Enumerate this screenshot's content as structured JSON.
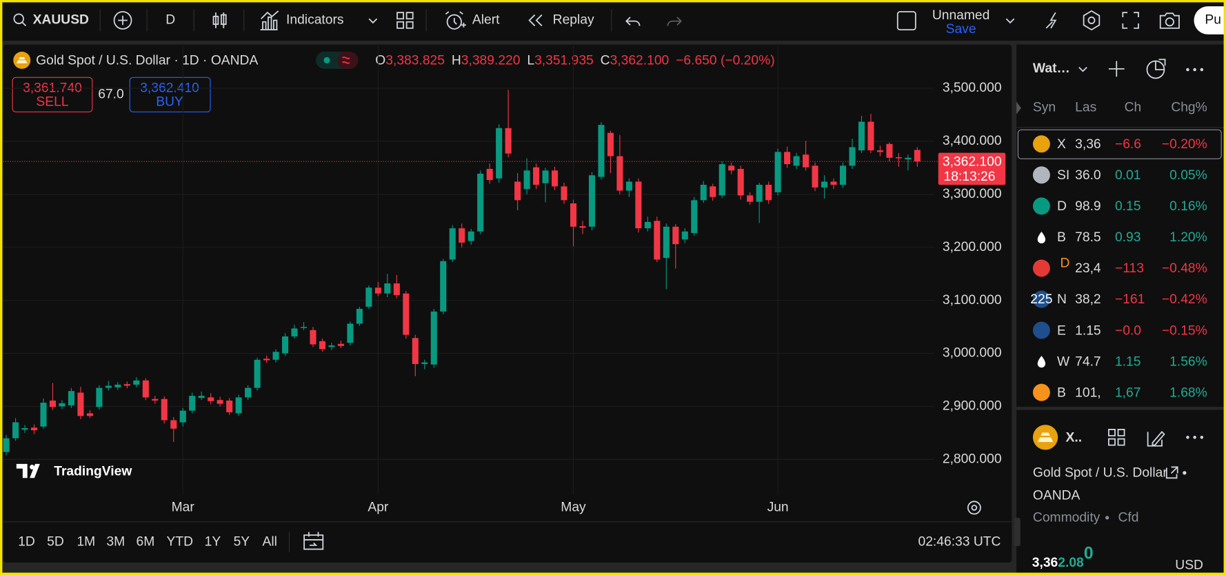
{
  "toolbar": {
    "symbol": "XAUUSD",
    "interval": "D",
    "indicators": "Indicators",
    "alert": "Alert",
    "replay": "Replay",
    "layout_name": "Unnamed",
    "save": "Save",
    "publish": "Pu"
  },
  "legend": {
    "title": "Gold Spot / U.S. Dollar · 1D · OANDA",
    "open_label": "O",
    "open": "3,383.825",
    "high_label": "H",
    "high": "3,389.220",
    "low_label": "L",
    "low": "3,351.935",
    "close_label": "C",
    "close": "3,362.100",
    "change": "−6.650 (−0.20%)"
  },
  "trade": {
    "sell_price": "3,361.740",
    "sell": "SELL",
    "spread": "67.0",
    "buy_price": "3,362.410",
    "buy": "BUY"
  },
  "watermark": "TradingView",
  "chart_data": {
    "type": "candlestick",
    "categories": [
      null,
      null,
      null,
      null,
      null,
      null,
      null,
      null,
      null,
      null,
      null,
      null,
      null,
      null,
      null,
      null,
      null,
      null,
      null,
      "Mar",
      null,
      null,
      null,
      null,
      null,
      null,
      null,
      null,
      null,
      null,
      null,
      null,
      null,
      null,
      null,
      null,
      null,
      null,
      null,
      null,
      "Apr",
      null,
      null,
      null,
      null,
      null,
      null,
      null,
      null,
      null,
      null,
      null,
      null,
      null,
      null,
      null,
      null,
      null,
      null,
      null,
      null,
      "May",
      null,
      null,
      null,
      null,
      null,
      null,
      null,
      null,
      null,
      null,
      null,
      null,
      null,
      null,
      null,
      null,
      null,
      null,
      null,
      null,
      null,
      "Jun",
      null,
      null,
      null,
      null,
      null,
      null,
      null,
      null,
      null,
      null,
      null,
      null,
      null,
      null,
      null
    ],
    "open": [
      2814,
      2840,
      2856,
      2860,
      2862,
      2911,
      2900,
      2902,
      2926,
      2887,
      2899,
      2935,
      2936,
      2942,
      2941,
      2949,
      2914,
      2914,
      2874,
      2870,
      2892,
      2916,
      2917,
      2912,
      2911,
      2887,
      2917,
      2935,
      2990,
      2988,
      3000,
      3032,
      3048,
      3044,
      3023,
      3012,
      3018,
      3020,
      3056,
      3088,
      3124,
      3113,
      3132,
      3113,
      3029,
      2980,
      2979,
      3079,
      3177,
      3236,
      3212,
      3230,
      3348,
      3330,
      3425,
      3324,
      3310,
      3351,
      3321,
      3345,
      3315,
      3283,
      3240,
      3239,
      3333,
      3416,
      3372,
      3307,
      3324,
      3236,
      3250,
      3180,
      3239,
      3215,
      3227,
      3289,
      3315,
      3298,
      3354,
      3348,
      3298,
      3286,
      3318,
      3304,
      3380,
      3354,
      3375,
      3354,
      3313,
      3324,
      3318,
      3354,
      3383,
      3437,
      3383,
      3395,
      3370,
      3366,
      3383.825
    ],
    "high": [
      2846,
      2878,
      2865,
      2866,
      2915,
      2944,
      2912,
      2935,
      2937,
      2893,
      2940,
      2948,
      2946,
      2947,
      2955,
      2953,
      2920,
      2919,
      2880,
      2897,
      2926,
      2928,
      2925,
      2918,
      2916,
      2922,
      2940,
      2992,
      2996,
      3008,
      3038,
      3054,
      3059,
      3050,
      3028,
      3020,
      3024,
      3060,
      3088,
      3128,
      3135,
      3150,
      3148,
      3118,
      3035,
      2988,
      3084,
      3178,
      3242,
      3245,
      3235,
      3345,
      3358,
      3432,
      3497,
      3340,
      3368,
      3358,
      3350,
      3352,
      3322,
      3290,
      3250,
      3342,
      3436,
      3420,
      3412,
      3330,
      3330,
      3258,
      3258,
      3245,
      3244,
      3236,
      3295,
      3325,
      3320,
      3362,
      3360,
      3354,
      3304,
      3322,
      3324,
      3386,
      3390,
      3378,
      3401,
      3360,
      3336,
      3330,
      3360,
      3405,
      3448,
      3452,
      3392,
      3398,
      3378,
      3375,
      3389.22
    ],
    "low": [
      2808,
      2835,
      2850,
      2848,
      2858,
      2893,
      2895,
      2897,
      2876,
      2878,
      2894,
      2930,
      2931,
      2934,
      2936,
      2912,
      2905,
      2868,
      2833,
      2862,
      2887,
      2912,
      2904,
      2900,
      2884,
      2882,
      2912,
      2930,
      2982,
      2983,
      2995,
      3028,
      3044,
      3012,
      3003,
      3006,
      3010,
      3015,
      3052,
      3084,
      3108,
      3106,
      3104,
      3028,
      2957,
      2970,
      2973,
      3074,
      3172,
      3200,
      3205,
      3225,
      3320,
      3322,
      3370,
      3270,
      3300,
      3310,
      3285,
      3308,
      3282,
      3202,
      3225,
      3232,
      3328,
      3340,
      3300,
      3295,
      3228,
      3230,
      3172,
      3121,
      3160,
      3208,
      3222,
      3284,
      3288,
      3293,
      3338,
      3290,
      3280,
      3246,
      3282,
      3298,
      3350,
      3348,
      3345,
      3306,
      3292,
      3310,
      3312,
      3348,
      3378,
      3378,
      3372,
      3362,
      3352,
      3345,
      3351.935
    ],
    "close": [
      2840,
      2870,
      2859,
      2855,
      2907,
      2899,
      2906,
      2929,
      2882,
      2882,
      2935,
      2939,
      2941,
      2939,
      2949,
      2917,
      2911,
      2874,
      2858,
      2892,
      2920,
      2920,
      2910,
      2905,
      2889,
      2917,
      2935,
      2988,
      2987,
      3003,
      3032,
      3047,
      3050,
      3017,
      3008,
      3015,
      3014,
      3056,
      3084,
      3124,
      3113,
      3132,
      3110,
      3035,
      2980,
      2983,
      3079,
      3174,
      3236,
      3209,
      3230,
      3339,
      3327,
      3425,
      3377,
      3289,
      3345,
      3318,
      3345,
      3315,
      3289,
      3239,
      3237,
      3336,
      3431,
      3372,
      3307,
      3324,
      3236,
      3248,
      3177,
      3239,
      3206,
      3230,
      3289,
      3318,
      3295,
      3357,
      3345,
      3298,
      3286,
      3318,
      3289,
      3380,
      3357,
      3372,
      3351,
      3313,
      3324,
      3318,
      3354,
      3389,
      3437,
      3383,
      3380,
      3369,
      3368,
      3369,
      3362.1
    ],
    "up_color": "#089981",
    "down_color": "#f23645",
    "ylim": [
      2734,
      3581
    ],
    "yticks": [
      {
        "value": 2800,
        "label": "2,800.000"
      },
      {
        "value": 2900,
        "label": "2,900.000"
      },
      {
        "value": 3000,
        "label": "3,000.000"
      },
      {
        "value": 3100,
        "label": "3,100.000"
      },
      {
        "value": 3200,
        "label": "3,200.000"
      },
      {
        "value": 3300,
        "label": "3,300.000"
      },
      {
        "value": 3400,
        "label": "3,400.000"
      },
      {
        "value": 3500,
        "label": "3,500.000"
      }
    ],
    "grid": true,
    "last_price": {
      "label": "3,362.100",
      "countdown": "18:13:26"
    }
  },
  "timeframes": [
    "1D",
    "5D",
    "1M",
    "3M",
    "6M",
    "YTD",
    "1Y",
    "5Y",
    "All"
  ],
  "clock": "02:46:33 UTC",
  "watchlist": {
    "title": "Wat…",
    "columns": [
      "Syn",
      "Las",
      "Ch",
      "Chg%"
    ],
    "rows": [
      {
        "symbol": "X",
        "last": "3,36",
        "change": "−6.6",
        "change_pct": "−0.20%",
        "color": "#f23645"
      },
      {
        "symbol": "SI",
        "last": "36.0",
        "change": "0.01",
        "change_pct": "0.05%",
        "color": "#22ab94"
      },
      {
        "symbol": "D",
        "last": "98.9",
        "change": "0.15",
        "change_pct": "0.16%",
        "color": "#22ab94"
      },
      {
        "symbol": "B",
        "last": "78.5",
        "change": "0.93",
        "change_pct": "1.20%",
        "color": "#22ab94"
      },
      {
        "badge": "D",
        "last": "23,4",
        "change": "−113",
        "change_pct": "−0.48%",
        "color": "#f23645"
      },
      {
        "icon_text": "225",
        "symbol": "N",
        "last": "38,2",
        "change": "−161",
        "change_pct": "−0.42%",
        "color": "#f23645"
      },
      {
        "symbol": "E",
        "last": "1.15",
        "change": "−0.0",
        "change_pct": "−0.15%",
        "color": "#f23645"
      },
      {
        "symbol": "W",
        "last": "74.7",
        "change": "1.15",
        "change_pct": "1.56%",
        "color": "#22ab94"
      },
      {
        "symbol": "B",
        "last": "101,",
        "change": "1,67",
        "change_pct": "1.68%",
        "color": "#22ab94"
      }
    ]
  },
  "details": {
    "symbol": "X..",
    "name": "Gold Spot / U.S. Dollar",
    "separator": "•",
    "exchange": "OANDA",
    "category": "Commodity",
    "subtype": "Cfd",
    "price_main": "3,36",
    "price_fraction": "2.08",
    "price_pip": "0",
    "currency": "USD"
  }
}
